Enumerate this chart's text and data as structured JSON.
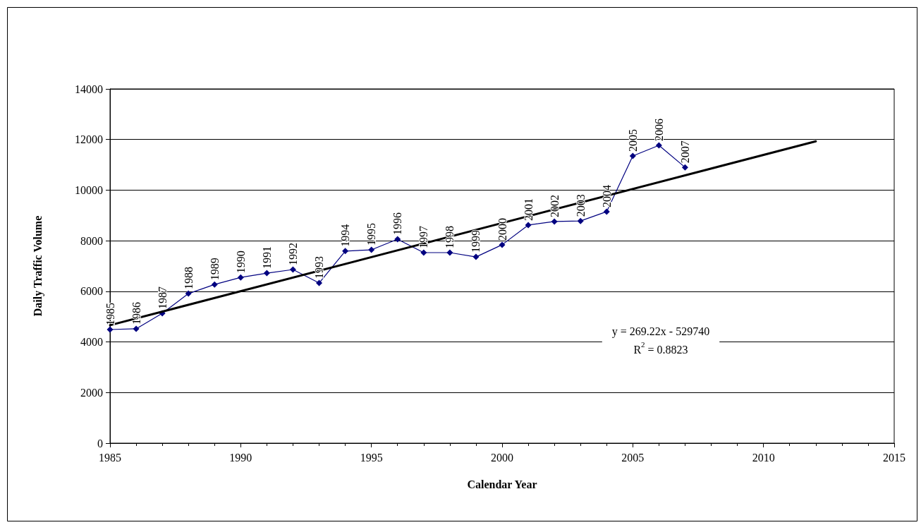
{
  "chart_data": {
    "type": "line",
    "xlabel": "Calendar Year",
    "ylabel": "Daily Traffic Volume",
    "xlim": [
      1985,
      2015
    ],
    "xticks": [
      1985,
      1990,
      1995,
      2000,
      2005,
      2010,
      2015
    ],
    "ylim": [
      0,
      14000
    ],
    "yticks": [
      0,
      2000,
      4000,
      6000,
      8000,
      10000,
      12000,
      14000
    ],
    "grid": "y",
    "line_style": "solid",
    "series": [
      {
        "color": "#000080",
        "marker": "diamond",
        "x": [
          1985,
          1986,
          1987,
          1988,
          1989,
          1990,
          1991,
          1992,
          1993,
          1994,
          1995,
          1996,
          1997,
          1998,
          1999,
          2000,
          2001,
          2002,
          2003,
          2004,
          2005,
          2006,
          2007
        ],
        "values": [
          4490,
          4520,
          5130,
          5910,
          6270,
          6550,
          6720,
          6860,
          6330,
          7590,
          7640,
          8060,
          7530,
          7530,
          7360,
          7840,
          8620,
          8760,
          8780,
          9150,
          11350,
          11770,
          10900
        ]
      },
      {
        "color": "#000000",
        "marker": "none",
        "x": [
          1985,
          2012
        ],
        "values": [
          4660,
          11930
        ]
      }
    ],
    "annotations": [
      {
        "text": "1985",
        "x": 1985,
        "y": 4490
      },
      {
        "text": "1986",
        "x": 1986,
        "y": 4520
      },
      {
        "text": "1987",
        "x": 1987,
        "y": 5130
      },
      {
        "text": "1988",
        "x": 1988,
        "y": 5910
      },
      {
        "text": "1989",
        "x": 1989,
        "y": 6270
      },
      {
        "text": "1990",
        "x": 1990,
        "y": 6550
      },
      {
        "text": "1991",
        "x": 1991,
        "y": 6720
      },
      {
        "text": "1992",
        "x": 1992,
        "y": 6860
      },
      {
        "text": "1993",
        "x": 1993,
        "y": 6330
      },
      {
        "text": "1994",
        "x": 1994,
        "y": 7590
      },
      {
        "text": "1995",
        "x": 1995,
        "y": 7640
      },
      {
        "text": "1996",
        "x": 1996,
        "y": 8060
      },
      {
        "text": "1997",
        "x": 1997,
        "y": 7530
      },
      {
        "text": "1998",
        "x": 1998,
        "y": 7530
      },
      {
        "text": "1999",
        "x": 1999,
        "y": 7360
      },
      {
        "text": "2000",
        "x": 2000,
        "y": 7840
      },
      {
        "text": "2001",
        "x": 2001,
        "y": 8620
      },
      {
        "text": "2002",
        "x": 2002,
        "y": 8760
      },
      {
        "text": "2003",
        "x": 2003,
        "y": 8780
      },
      {
        "text": "2004",
        "x": 2004,
        "y": 9150
      },
      {
        "text": "2005",
        "x": 2005,
        "y": 11350
      },
      {
        "text": "2006",
        "x": 2006,
        "y": 11770
      },
      {
        "text": "2007",
        "x": 2007,
        "y": 10900
      },
      "y = 269.22x - 529740",
      "R$^{2}$ = 0.8823"
    ]
  }
}
